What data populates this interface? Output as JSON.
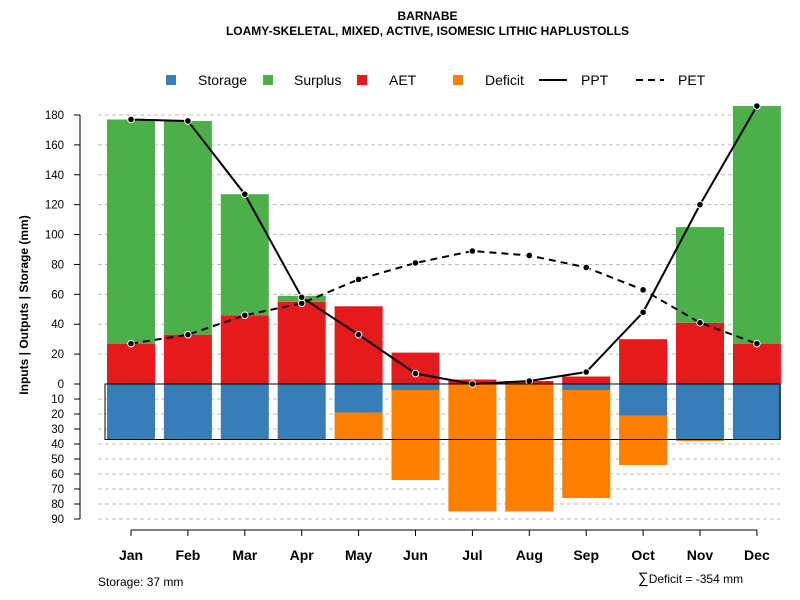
{
  "chart_data": {
    "type": "bar",
    "title": "BARNABE",
    "subtitle": "LOAMY-SKELETAL, MIXED, ACTIVE, ISOMESIC LITHIC HAPLUSTOLLS",
    "ylabel": "Inputs | Outputs | Storage    (mm)",
    "categories": [
      "Jan",
      "Feb",
      "Mar",
      "Apr",
      "May",
      "Jun",
      "Jul",
      "Aug",
      "Sep",
      "Oct",
      "Nov",
      "Dec"
    ],
    "positive_ticks": [
      0,
      20,
      40,
      60,
      80,
      100,
      120,
      140,
      160,
      180
    ],
    "negative_ticks": [
      0,
      10,
      20,
      30,
      40,
      50,
      60,
      70,
      80,
      90
    ],
    "positive_ylim": [
      0,
      186
    ],
    "negative_ylim": [
      0,
      90
    ],
    "legend": [
      "Storage",
      "Surplus",
      "AET",
      "Deficit",
      "PPT",
      "PET"
    ],
    "colors": {
      "storage": "#377EB8",
      "surplus": "#4DAF4A",
      "aet": "#E41A1C",
      "deficit": "#FF7F00",
      "line": "#000000",
      "grid": "#BEBEBE"
    },
    "series": [
      {
        "name": "AET",
        "values": [
          27,
          33,
          46,
          55,
          52,
          21,
          3,
          2,
          5,
          30,
          41,
          27
        ]
      },
      {
        "name": "Surplus",
        "values": [
          150,
          143,
          81,
          4,
          0,
          0,
          0,
          0,
          0,
          0,
          64,
          159
        ]
      },
      {
        "name": "Storage",
        "values": [
          37,
          37,
          37,
          37,
          19,
          4,
          0,
          0,
          4,
          21,
          37,
          37
        ]
      },
      {
        "name": "Deficit",
        "values": [
          0,
          0,
          0,
          0,
          18,
          60,
          85,
          85,
          72,
          33,
          1,
          0
        ]
      },
      {
        "name": "PPT",
        "values": [
          177,
          176,
          127,
          58,
          33,
          7,
          0,
          2,
          8,
          48,
          120,
          186
        ]
      },
      {
        "name": "PET",
        "values": [
          27,
          33,
          46,
          54,
          70,
          81,
          89,
          86,
          78,
          63,
          41,
          27
        ]
      }
    ]
  },
  "footer": {
    "storage": "Storage: 37 mm",
    "deficit_symbol": "∑",
    "deficit": "Deficit = -354 mm"
  }
}
